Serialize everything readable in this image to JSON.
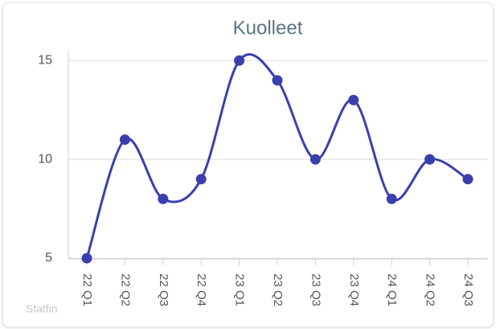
{
  "chart_data": {
    "type": "line",
    "title": "Kuolleet",
    "credit": "Statfin",
    "categories": [
      "22 Q1",
      "22 Q2",
      "22 Q3",
      "22 Q4",
      "23 Q1",
      "23 Q2",
      "23 Q3",
      "23 Q4",
      "24 Q1",
      "24 Q2",
      "24 Q3"
    ],
    "values": [
      5,
      11,
      8,
      9,
      15,
      14,
      10,
      13,
      8,
      10,
      9
    ],
    "color": "#3b3fae",
    "ylim": [
      5,
      15.5
    ],
    "yticks": [
      5,
      10,
      15
    ],
    "grid": true
  }
}
